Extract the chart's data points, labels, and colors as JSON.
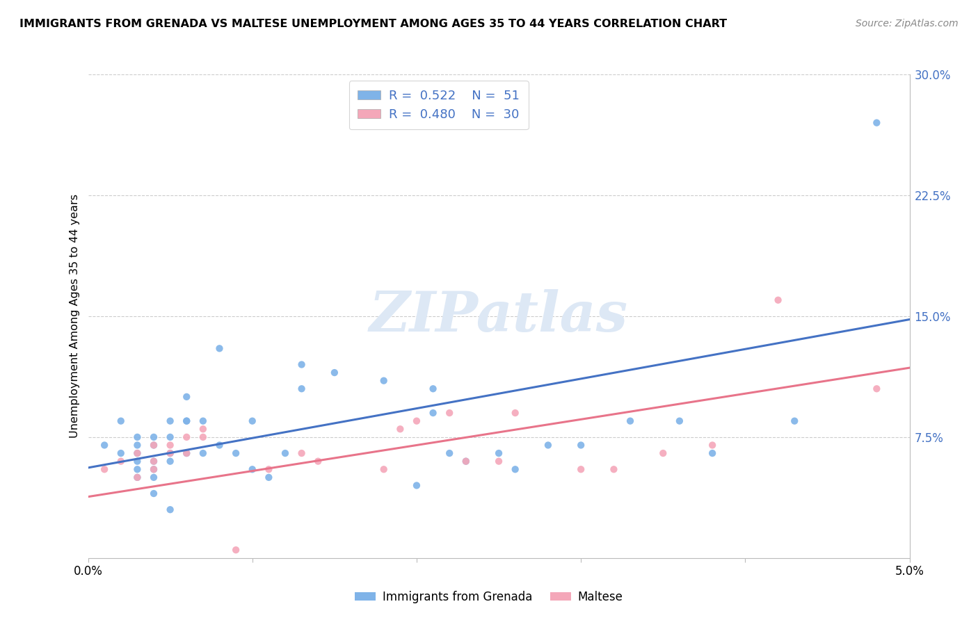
{
  "title": "IMMIGRANTS FROM GRENADA VS MALTESE UNEMPLOYMENT AMONG AGES 35 TO 44 YEARS CORRELATION CHART",
  "source": "Source: ZipAtlas.com",
  "ylabel": "Unemployment Among Ages 35 to 44 years",
  "x_min": 0.0,
  "x_max": 0.05,
  "y_min": 0.0,
  "y_max": 0.3,
  "x_ticks": [
    0.0,
    0.01,
    0.02,
    0.03,
    0.04,
    0.05
  ],
  "x_tick_labels": [
    "0.0%",
    "",
    "",
    "",
    "",
    "5.0%"
  ],
  "y_ticks_right": [
    0.075,
    0.15,
    0.225,
    0.3
  ],
  "y_tick_labels_right": [
    "7.5%",
    "15.0%",
    "22.5%",
    "30.0%"
  ],
  "grenada_color": "#7FB3E8",
  "maltese_color": "#F4A7B9",
  "grenada_line_color": "#4472C4",
  "maltese_line_color": "#E8748A",
  "grenada_R": 0.522,
  "grenada_N": 51,
  "maltese_R": 0.48,
  "maltese_N": 30,
  "legend_color": "#4472C4",
  "watermark": "ZIPatlas",
  "grenada_x": [
    0.001,
    0.002,
    0.002,
    0.003,
    0.003,
    0.003,
    0.003,
    0.003,
    0.003,
    0.004,
    0.004,
    0.004,
    0.004,
    0.004,
    0.004,
    0.005,
    0.005,
    0.005,
    0.005,
    0.005,
    0.006,
    0.006,
    0.006,
    0.006,
    0.007,
    0.007,
    0.008,
    0.008,
    0.009,
    0.01,
    0.01,
    0.011,
    0.012,
    0.013,
    0.013,
    0.015,
    0.018,
    0.02,
    0.021,
    0.021,
    0.022,
    0.023,
    0.025,
    0.026,
    0.028,
    0.03,
    0.033,
    0.036,
    0.038,
    0.043,
    0.048
  ],
  "grenada_y": [
    0.07,
    0.085,
    0.065,
    0.07,
    0.065,
    0.06,
    0.055,
    0.075,
    0.05,
    0.075,
    0.07,
    0.06,
    0.055,
    0.05,
    0.04,
    0.085,
    0.075,
    0.065,
    0.06,
    0.03,
    0.1,
    0.085,
    0.085,
    0.065,
    0.085,
    0.065,
    0.13,
    0.07,
    0.065,
    0.085,
    0.055,
    0.05,
    0.065,
    0.12,
    0.105,
    0.115,
    0.11,
    0.045,
    0.105,
    0.09,
    0.065,
    0.06,
    0.065,
    0.055,
    0.07,
    0.07,
    0.085,
    0.085,
    0.065,
    0.085,
    0.27
  ],
  "maltese_x": [
    0.001,
    0.002,
    0.003,
    0.003,
    0.004,
    0.004,
    0.004,
    0.005,
    0.005,
    0.006,
    0.006,
    0.007,
    0.007,
    0.009,
    0.011,
    0.013,
    0.014,
    0.018,
    0.019,
    0.02,
    0.022,
    0.023,
    0.025,
    0.026,
    0.03,
    0.032,
    0.035,
    0.038,
    0.042,
    0.048
  ],
  "maltese_y": [
    0.055,
    0.06,
    0.065,
    0.05,
    0.07,
    0.06,
    0.055,
    0.07,
    0.065,
    0.075,
    0.065,
    0.08,
    0.075,
    0.005,
    0.055,
    0.065,
    0.06,
    0.055,
    0.08,
    0.085,
    0.09,
    0.06,
    0.06,
    0.09,
    0.055,
    0.055,
    0.065,
    0.07,
    0.16,
    0.105
  ],
  "grenada_trend": [
    0.0,
    0.05,
    0.056,
    0.148
  ],
  "maltese_trend": [
    0.0,
    0.05,
    0.038,
    0.118
  ],
  "bottom_legend_labels": [
    "Immigrants from Grenada",
    "Maltese"
  ]
}
